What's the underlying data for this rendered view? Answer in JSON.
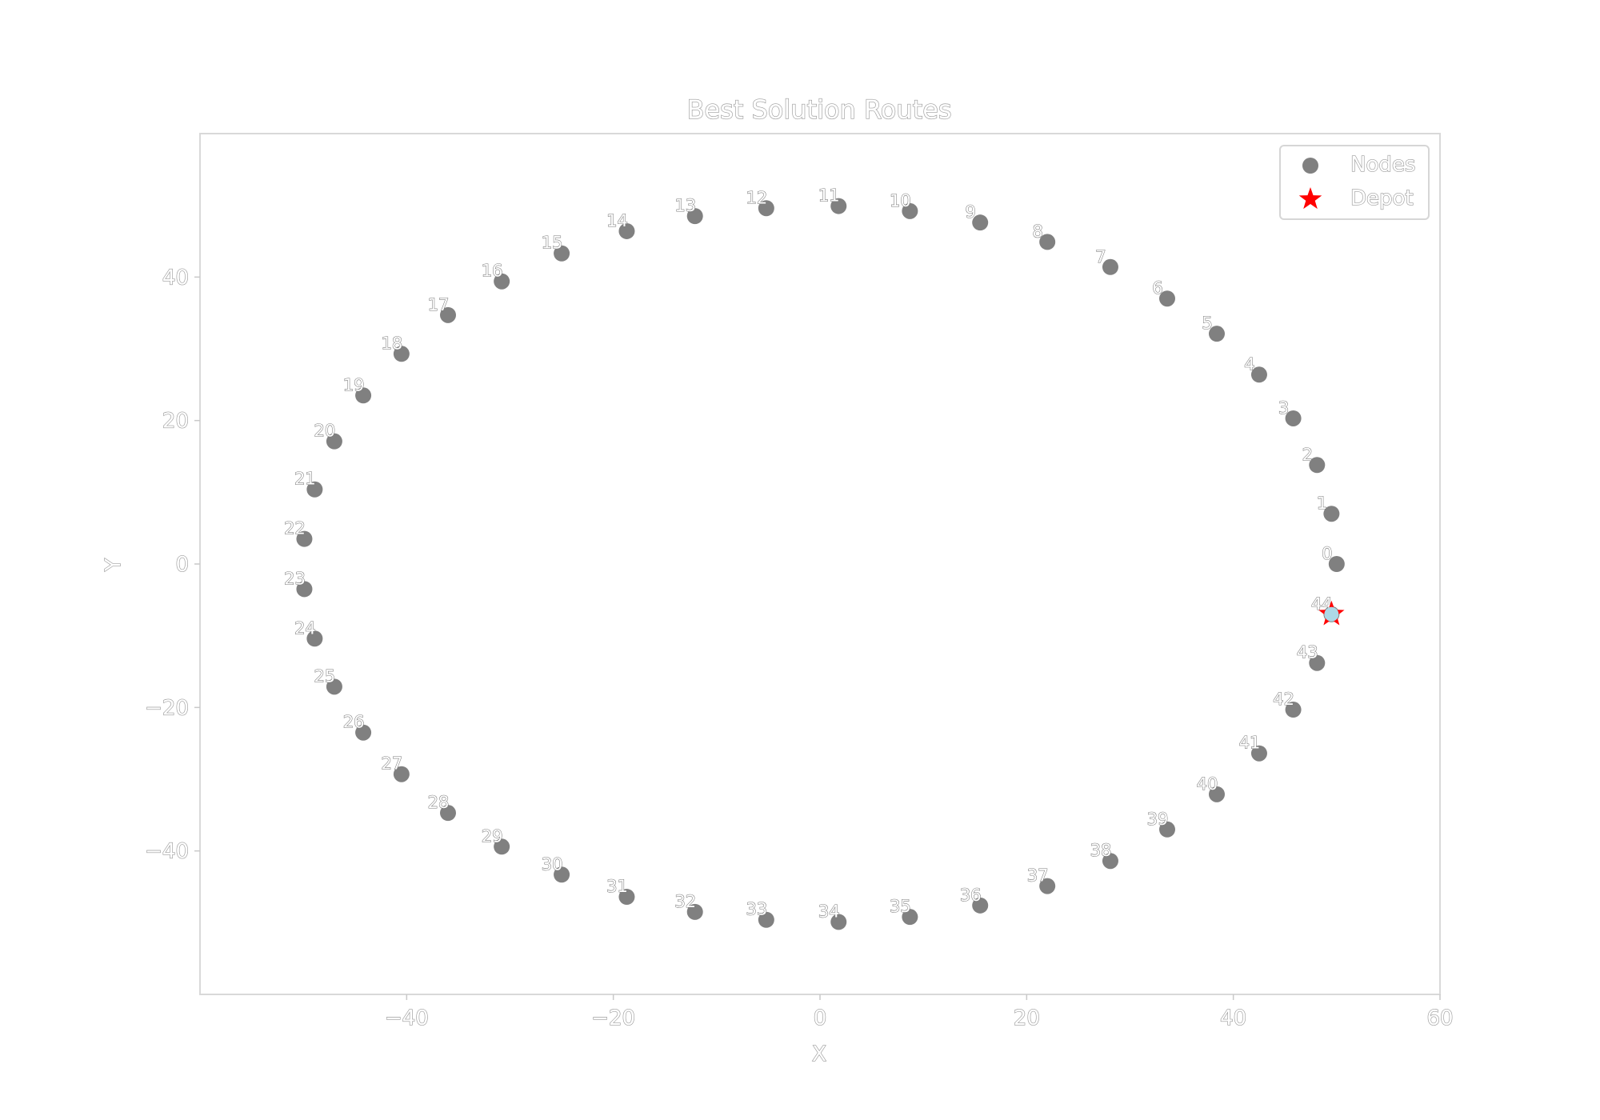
{
  "chart_data": {
    "type": "scatter",
    "title": "Best Solution Routes",
    "xlabel": "X",
    "ylabel": "Y",
    "xlim": [
      -60,
      60
    ],
    "ylim": [
      -60,
      60
    ],
    "xticks": [
      -40,
      -20,
      0,
      20,
      40,
      60
    ],
    "yticks": [
      -40,
      -20,
      0,
      20,
      40
    ],
    "grid": false,
    "legend": {
      "placement": "top-right",
      "entries": [
        {
          "label": "Nodes",
          "marker": "circle",
          "color": "#808080"
        },
        {
          "label": "Depot",
          "marker": "star",
          "color": "#ff0000"
        }
      ]
    },
    "node_color": "#808080",
    "depot_color": "#ff0000",
    "depot_fill": "#add8e6",
    "depot_index": 44,
    "nodes": [
      {
        "id": "0",
        "x": 50.0,
        "y": 0.0
      },
      {
        "id": "1",
        "x": 49.5,
        "y": 7.0
      },
      {
        "id": "2",
        "x": 48.1,
        "y": 13.8
      },
      {
        "id": "3",
        "x": 45.8,
        "y": 20.3
      },
      {
        "id": "4",
        "x": 42.5,
        "y": 26.4
      },
      {
        "id": "5",
        "x": 38.4,
        "y": 32.1
      },
      {
        "id": "6",
        "x": 33.6,
        "y": 37.0
      },
      {
        "id": "7",
        "x": 28.1,
        "y": 41.4
      },
      {
        "id": "8",
        "x": 22.0,
        "y": 44.9
      },
      {
        "id": "9",
        "x": 15.5,
        "y": 47.6
      },
      {
        "id": "10",
        "x": 8.7,
        "y": 49.2
      },
      {
        "id": "11",
        "x": 1.8,
        "y": 49.9
      },
      {
        "id": "12",
        "x": -5.2,
        "y": 49.6
      },
      {
        "id": "13",
        "x": -12.1,
        "y": 48.5
      },
      {
        "id": "14",
        "x": -18.7,
        "y": 46.4
      },
      {
        "id": "15",
        "x": -25.0,
        "y": 43.3
      },
      {
        "id": "16",
        "x": -30.8,
        "y": 39.4
      },
      {
        "id": "17",
        "x": -36.0,
        "y": 34.7
      },
      {
        "id": "18",
        "x": -40.5,
        "y": 29.3
      },
      {
        "id": "19",
        "x": -44.2,
        "y": 23.5
      },
      {
        "id": "20",
        "x": -47.0,
        "y": 17.1
      },
      {
        "id": "21",
        "x": -48.9,
        "y": 10.4
      },
      {
        "id": "22",
        "x": -49.9,
        "y": 3.5
      },
      {
        "id": "23",
        "x": -49.9,
        "y": -3.5
      },
      {
        "id": "24",
        "x": -48.9,
        "y": -10.4
      },
      {
        "id": "25",
        "x": -47.0,
        "y": -17.1
      },
      {
        "id": "26",
        "x": -44.2,
        "y": -23.5
      },
      {
        "id": "27",
        "x": -40.5,
        "y": -29.3
      },
      {
        "id": "28",
        "x": -36.0,
        "y": -34.7
      },
      {
        "id": "29",
        "x": -30.8,
        "y": -39.4
      },
      {
        "id": "30",
        "x": -25.0,
        "y": -43.3
      },
      {
        "id": "31",
        "x": -18.7,
        "y": -46.4
      },
      {
        "id": "32",
        "x": -12.1,
        "y": -48.5
      },
      {
        "id": "33",
        "x": -5.2,
        "y": -49.6
      },
      {
        "id": "34",
        "x": 1.8,
        "y": -49.9
      },
      {
        "id": "35",
        "x": 8.7,
        "y": -49.2
      },
      {
        "id": "36",
        "x": 15.5,
        "y": -47.6
      },
      {
        "id": "37",
        "x": 22.0,
        "y": -44.9
      },
      {
        "id": "38",
        "x": 28.1,
        "y": -41.4
      },
      {
        "id": "39",
        "x": 33.6,
        "y": -37.0
      },
      {
        "id": "40",
        "x": 38.4,
        "y": -32.1
      },
      {
        "id": "41",
        "x": 42.5,
        "y": -26.4
      },
      {
        "id": "42",
        "x": 45.8,
        "y": -20.3
      },
      {
        "id": "43",
        "x": 48.1,
        "y": -13.8
      },
      {
        "id": "44",
        "x": 49.5,
        "y": -7.0
      }
    ]
  }
}
